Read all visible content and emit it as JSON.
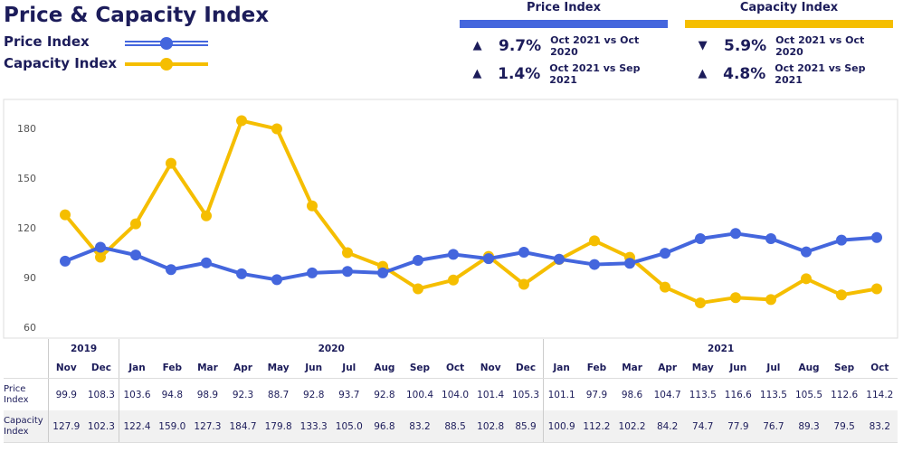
{
  "header": {
    "title": "Price & Capacity Index",
    "legend": [
      {
        "label": "Price Index",
        "color": "#4466dd"
      },
      {
        "label": "Capacity Index",
        "color": "#f5be00"
      }
    ]
  },
  "kpis": [
    {
      "title": "Price Index",
      "color": "#4466dd",
      "rows": [
        {
          "direction": "up",
          "icon": "▲",
          "value": "9.7%",
          "compare": "Oct 2021 vs Oct 2020"
        },
        {
          "direction": "up",
          "icon": "▲",
          "value": "1.4%",
          "compare": "Oct 2021 vs Sep 2021"
        }
      ]
    },
    {
      "title": "Capacity Index",
      "color": "#f5be00",
      "rows": [
        {
          "direction": "down",
          "icon": "▼",
          "value": "5.9%",
          "compare": "Oct 2021 vs Oct 2020"
        },
        {
          "direction": "up",
          "icon": "▲",
          "value": "4.8%",
          "compare": "Oct 2021 vs Sep 2021"
        }
      ]
    }
  ],
  "chart_data": {
    "type": "line",
    "years": [
      {
        "label": "2019",
        "span": 2
      },
      {
        "label": "2020",
        "span": 12
      },
      {
        "label": "2021",
        "span": 10
      }
    ],
    "categories": [
      "Nov",
      "Dec",
      "Jan",
      "Feb",
      "Mar",
      "Apr",
      "May",
      "Jun",
      "Jul",
      "Aug",
      "Sep",
      "Oct",
      "Nov",
      "Dec",
      "Jan",
      "Feb",
      "Mar",
      "Apr",
      "May",
      "Jun",
      "Jul",
      "Aug",
      "Sep",
      "Oct"
    ],
    "ylim": [
      60,
      197
    ],
    "yticks": [
      60,
      90,
      120,
      150,
      180
    ],
    "grid": false,
    "series": [
      {
        "name": "Price Index",
        "row_label": "Price Index",
        "color": "#4466dd",
        "values": [
          99.9,
          108.3,
          103.6,
          94.8,
          98.9,
          92.3,
          88.7,
          92.8,
          93.7,
          92.8,
          100.4,
          104.0,
          101.4,
          105.3,
          101.1,
          97.9,
          98.6,
          104.7,
          113.5,
          116.6,
          113.5,
          105.5,
          112.6,
          114.2
        ]
      },
      {
        "name": "Capacity Index",
        "row_label": "Capacity Index",
        "color": "#f5be00",
        "values": [
          127.9,
          102.3,
          122.4,
          159.0,
          127.3,
          184.7,
          179.8,
          133.3,
          105.0,
          96.8,
          83.2,
          88.5,
          102.8,
          85.9,
          100.9,
          112.2,
          102.2,
          84.2,
          74.7,
          77.9,
          76.7,
          89.3,
          79.5,
          83.2
        ]
      }
    ]
  }
}
